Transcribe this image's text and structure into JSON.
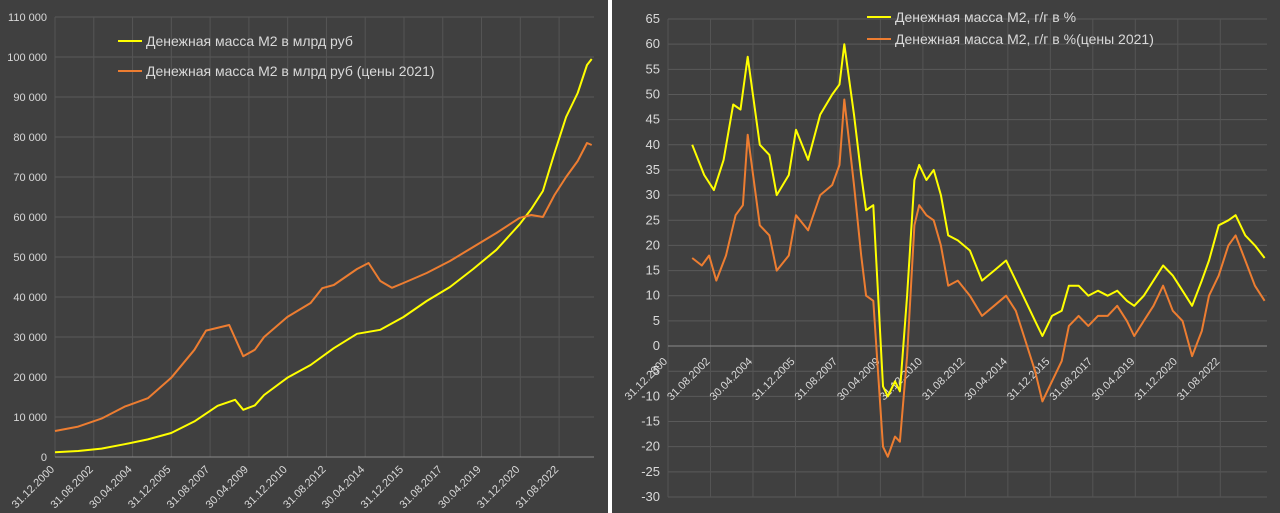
{
  "chart_data": [
    {
      "type": "line",
      "title": "",
      "xlabel": "",
      "ylabel": "",
      "ylim": [
        0,
        110000
      ],
      "y_ticks": [
        "0",
        "10 000",
        "20 000",
        "30 000",
        "40 000",
        "50 000",
        "60 000",
        "70 000",
        "80 000",
        "90 000",
        "100 000",
        "110 000"
      ],
      "x_ticks": [
        "31.12.2000",
        "31.08.2002",
        "30.04.2004",
        "31.12.2005",
        "31.08.2007",
        "30.04.2009",
        "31.12.2010",
        "31.08.2012",
        "30.04.2014",
        "31.12.2015",
        "31.08.2017",
        "30.04.2019",
        "31.12.2020",
        "31.08.2022"
      ],
      "legend_position": "top-left",
      "grid": true,
      "series": [
        {
          "name": "Денежная масса М2 в млрд руб",
          "color": "#ffff00",
          "points": [
            [
              2001,
              1200
            ],
            [
              2002,
              1500
            ],
            [
              2003,
              2100
            ],
            [
              2004,
              3200
            ],
            [
              2005,
              4400
            ],
            [
              2006,
              6000
            ],
            [
              2007,
              8900
            ],
            [
              2008,
              12800
            ],
            [
              2008.75,
              14300
            ],
            [
              2009.1,
              11800
            ],
            [
              2009.6,
              12900
            ],
            [
              2010,
              15500
            ],
            [
              2011,
              19800
            ],
            [
              2012,
              23000
            ],
            [
              2013,
              27200
            ],
            [
              2014,
              30800
            ],
            [
              2015,
              31800
            ],
            [
              2016,
              35000
            ],
            [
              2017,
              39000
            ],
            [
              2018,
              42500
            ],
            [
              2019,
              47000
            ],
            [
              2020,
              51800
            ],
            [
              2021,
              58200
            ],
            [
              2021.5,
              62000
            ],
            [
              2022,
              66500
            ],
            [
              2022.5,
              76000
            ],
            [
              2023,
              85000
            ],
            [
              2023.5,
              91000
            ],
            [
              2023.9,
              98000
            ],
            [
              2024.1,
              99500
            ]
          ]
        },
        {
          "name": "Денежная масса М2 в млрд руб (цены 2021)",
          "color": "#ed7d31",
          "points": [
            [
              2001,
              6500
            ],
            [
              2002,
              7600
            ],
            [
              2003,
              9600
            ],
            [
              2004,
              12600
            ],
            [
              2005,
              14700
            ],
            [
              2006,
              19800
            ],
            [
              2007,
              26800
            ],
            [
              2007.5,
              31600
            ],
            [
              2008.5,
              33000
            ],
            [
              2009.1,
              25200
            ],
            [
              2009.6,
              26800
            ],
            [
              2010,
              30000
            ],
            [
              2011,
              35000
            ],
            [
              2012,
              38500
            ],
            [
              2012.5,
              42200
            ],
            [
              2013,
              43000
            ],
            [
              2014,
              47000
            ],
            [
              2014.5,
              48500
            ],
            [
              2015,
              44000
            ],
            [
              2015.5,
              42300
            ],
            [
              2016,
              43500
            ],
            [
              2017,
              46000
            ],
            [
              2018,
              49000
            ],
            [
              2019,
              52500
            ],
            [
              2020,
              56000
            ],
            [
              2021,
              59800
            ],
            [
              2021.5,
              60500
            ],
            [
              2022,
              60000
            ],
            [
              2022.5,
              65500
            ],
            [
              2023,
              70000
            ],
            [
              2023.5,
              74000
            ],
            [
              2023.9,
              78500
            ],
            [
              2024.1,
              78000
            ]
          ]
        }
      ]
    },
    {
      "type": "line",
      "title": "",
      "xlabel": "",
      "ylabel": "",
      "ylim": [
        -30,
        65
      ],
      "y_ticks": [
        "-30",
        "-25",
        "-20",
        "-15",
        "-10",
        "-5",
        "0",
        "5",
        "10",
        "15",
        "20",
        "25",
        "30",
        "35",
        "40",
        "45",
        "50",
        "55",
        "60",
        "65"
      ],
      "x_ticks": [
        "31.12.2000",
        "31.08.2002",
        "30.04.2004",
        "31.12.2005",
        "31.08.2007",
        "30.04.2009",
        "31.12.2010",
        "31.08.2012",
        "30.04.2014",
        "31.12.2015",
        "31.08.2017",
        "30.04.2019",
        "31.12.2020",
        "31.08.2022"
      ],
      "legend_position": "top",
      "grid": true,
      "series": [
        {
          "name": "Денежная масса М2, г/г в %",
          "color": "#ffff00",
          "points": [
            [
              2002,
              40
            ],
            [
              2002.5,
              34
            ],
            [
              2002.9,
              31
            ],
            [
              2003.3,
              37
            ],
            [
              2003.7,
              48
            ],
            [
              2004,
              47
            ],
            [
              2004.3,
              57.5
            ],
            [
              2004.8,
              40
            ],
            [
              2005.2,
              38
            ],
            [
              2005.5,
              30
            ],
            [
              2006,
              34
            ],
            [
              2006.3,
              43
            ],
            [
              2006.8,
              37
            ],
            [
              2007.3,
              46
            ],
            [
              2007.8,
              50
            ],
            [
              2008.1,
              52
            ],
            [
              2008.3,
              60
            ],
            [
              2008.7,
              46
            ],
            [
              2009,
              34
            ],
            [
              2009.2,
              27
            ],
            [
              2009.5,
              28
            ],
            [
              2009.9,
              -8
            ],
            [
              2010.1,
              -10
            ],
            [
              2010.4,
              -7
            ],
            [
              2010.6,
              -9
            ],
            [
              2010.9,
              10
            ],
            [
              2011.2,
              33
            ],
            [
              2011.4,
              36
            ],
            [
              2011.7,
              33
            ],
            [
              2012,
              35
            ],
            [
              2012.3,
              30
            ],
            [
              2012.6,
              22
            ],
            [
              2013,
              21
            ],
            [
              2013.5,
              19
            ],
            [
              2014,
              13
            ],
            [
              2014.5,
              15
            ],
            [
              2015,
              17
            ],
            [
              2015.4,
              13
            ],
            [
              2015.8,
              9
            ],
            [
              2016.2,
              5
            ],
            [
              2016.5,
              2
            ],
            [
              2016.9,
              6
            ],
            [
              2017.3,
              7
            ],
            [
              2017.6,
              12
            ],
            [
              2018,
              12
            ],
            [
              2018.4,
              10
            ],
            [
              2018.8,
              11
            ],
            [
              2019.2,
              10
            ],
            [
              2019.6,
              11
            ],
            [
              2020,
              9
            ],
            [
              2020.3,
              8
            ],
            [
              2020.7,
              10
            ],
            [
              2021.1,
              13
            ],
            [
              2021.5,
              16
            ],
            [
              2021.9,
              14
            ],
            [
              2022.3,
              11
            ],
            [
              2022.7,
              8
            ],
            [
              2023.1,
              13
            ],
            [
              2023.4,
              17
            ],
            [
              2023.8,
              24
            ],
            [
              2024.2,
              25
            ],
            [
              2024.5,
              26
            ],
            [
              2024.9,
              22
            ],
            [
              2025.3,
              20
            ],
            [
              2025.7,
              17.5
            ]
          ]
        },
        {
          "name": "Денежная масса М2, г/г в %(цены 2021)",
          "color": "#ed7d31",
          "points": [
            [
              2002,
              17.5
            ],
            [
              2002.4,
              16
            ],
            [
              2002.7,
              18
            ],
            [
              2003,
              13
            ],
            [
              2003.4,
              18
            ],
            [
              2003.8,
              26
            ],
            [
              2004.1,
              28
            ],
            [
              2004.3,
              42
            ],
            [
              2004.8,
              24
            ],
            [
              2005.2,
              22
            ],
            [
              2005.5,
              15
            ],
            [
              2006,
              18
            ],
            [
              2006.3,
              26
            ],
            [
              2006.8,
              23
            ],
            [
              2007.3,
              30
            ],
            [
              2007.8,
              32
            ],
            [
              2008.1,
              36
            ],
            [
              2008.3,
              49
            ],
            [
              2008.7,
              32
            ],
            [
              2009,
              18
            ],
            [
              2009.2,
              10
            ],
            [
              2009.5,
              9
            ],
            [
              2009.9,
              -20
            ],
            [
              2010.1,
              -22
            ],
            [
              2010.4,
              -18
            ],
            [
              2010.6,
              -19
            ],
            [
              2010.9,
              -2
            ],
            [
              2011.2,
              24
            ],
            [
              2011.4,
              28
            ],
            [
              2011.7,
              26
            ],
            [
              2012,
              25
            ],
            [
              2012.3,
              20
            ],
            [
              2012.6,
              12
            ],
            [
              2013,
              13
            ],
            [
              2013.5,
              10
            ],
            [
              2014,
              6
            ],
            [
              2014.5,
              8
            ],
            [
              2015,
              10
            ],
            [
              2015.4,
              7
            ],
            [
              2015.8,
              1
            ],
            [
              2016.2,
              -5
            ],
            [
              2016.5,
              -11
            ],
            [
              2016.9,
              -7
            ],
            [
              2017.3,
              -3
            ],
            [
              2017.6,
              4
            ],
            [
              2018,
              6
            ],
            [
              2018.4,
              4
            ],
            [
              2018.8,
              6
            ],
            [
              2019.2,
              6
            ],
            [
              2019.6,
              8
            ],
            [
              2020,
              5
            ],
            [
              2020.3,
              2
            ],
            [
              2020.7,
              5
            ],
            [
              2021.1,
              8
            ],
            [
              2021.5,
              12
            ],
            [
              2021.9,
              7
            ],
            [
              2022.3,
              5
            ],
            [
              2022.7,
              -2
            ],
            [
              2023.1,
              3
            ],
            [
              2023.4,
              10
            ],
            [
              2023.8,
              14
            ],
            [
              2024.2,
              20
            ],
            [
              2024.5,
              22
            ],
            [
              2024.9,
              17
            ],
            [
              2025.3,
              12
            ],
            [
              2025.7,
              9
            ]
          ]
        }
      ]
    }
  ]
}
